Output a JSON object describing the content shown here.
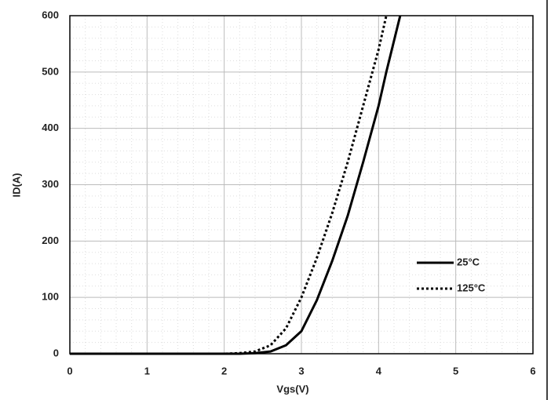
{
  "chart_data": {
    "type": "line",
    "x_label": "Vgs(V)",
    "y_label": "ID(A)",
    "x": [
      0,
      1,
      2,
      2.2,
      2.4,
      2.6,
      2.8,
      3.0,
      3.2,
      3.4,
      3.6,
      3.8,
      4.0,
      4.1,
      4.28
    ],
    "series": [
      {
        "name": "25°C",
        "color": "#000000",
        "dash": "solid",
        "values": [
          0,
          0,
          0,
          0,
          1,
          4,
          15,
          40,
          95,
          165,
          245,
          340,
          440,
          500,
          600
        ]
      },
      {
        "name": "125°C",
        "color": "#000000",
        "dash": "dotted",
        "values": [
          0,
          0,
          0,
          1,
          4,
          15,
          45,
          100,
          170,
          250,
          340,
          440,
          540,
          600,
          null
        ]
      }
    ],
    "xlim": [
      0,
      6
    ],
    "xticks": [
      0,
      1,
      2,
      3,
      4,
      5,
      6
    ],
    "ylim": [
      0,
      600
    ],
    "yticks": [
      0,
      100,
      200,
      300,
      400,
      500,
      600
    ],
    "grid": true,
    "legend": "right"
  }
}
